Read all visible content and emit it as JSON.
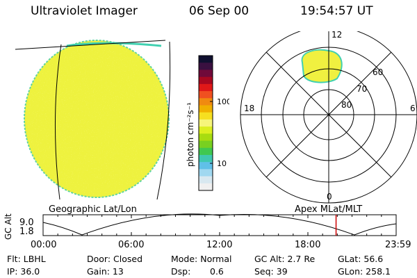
{
  "header": {
    "instrument": "Ultraviolet Imager",
    "date": "06 Sep 00",
    "time": "19:54:57 UT"
  },
  "colorbar": {
    "unit_label": "photon cm⁻²s⁻¹",
    "tick_high": "100",
    "tick_low": "10",
    "colors": [
      "#101030",
      "#3a1040",
      "#700a3a",
      "#a80820",
      "#e01818",
      "#f05020",
      "#f08a10",
      "#f0b000",
      "#f6df20",
      "#f6f57a",
      "#dcef20",
      "#a8dc10",
      "#78d020",
      "#40c850",
      "#40c8b0",
      "#60c0e8",
      "#a0d8f0",
      "#d8e8f0",
      "#f0f0f0"
    ]
  },
  "polar": {
    "mlt_top": "12",
    "mlt_bottom": "0",
    "mlt_left": "18",
    "mlt_right": "6",
    "lat_60": "60",
    "lat_70": "70",
    "lat_80": "80"
  },
  "timeline": {
    "y_axis_label": "GC Alt",
    "y_max": "9.0",
    "y_min": "1.8",
    "left_title": "Geographic Lat/Lon",
    "right_title": "Apex  MLat/MLT",
    "ticks": [
      "00:00",
      "06:00",
      "12:00",
      "18:00",
      "23:59"
    ],
    "current_time_fraction": 0.8298
  },
  "info": {
    "filter": "Flt: LBHL",
    "door": "Door: Closed",
    "mode": "Mode: Normal",
    "gc_alt": "GC Alt: 2.7 Re",
    "glat": "GLat:  56.6",
    "ip": "IP: 36.0",
    "gain": "Gain: 13",
    "dsp_label": "Dsp:",
    "dsp_value": "0.6",
    "seq": "Seq: 39",
    "glon": "GLon: 258.1"
  },
  "colors": {
    "disk": "#eef23e",
    "aurora": "#f0f040",
    "edge": "#40d0b0",
    "marker": "#cc0000"
  }
}
